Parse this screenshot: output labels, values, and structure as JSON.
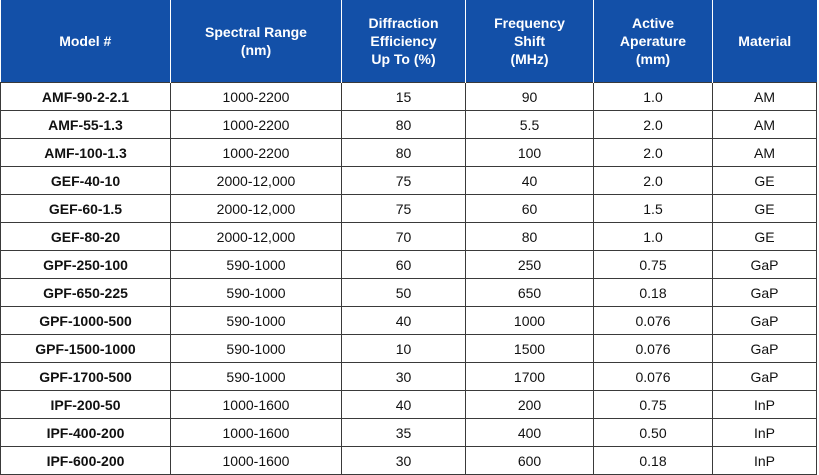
{
  "table": {
    "headers": [
      "Model #",
      "Spectral Range\n(nm)",
      "Diffraction\nEfficiency\nUp To (%)",
      "Frequency\nShift\n(MHz)",
      "Active\nAperature\n(mm)",
      "Material"
    ],
    "rows": [
      [
        "AMF-90-2-2.1",
        "1000-2200",
        "15",
        "90",
        "1.0",
        "AM"
      ],
      [
        "AMF-55-1.3",
        "1000-2200",
        "80",
        "5.5",
        "2.0",
        "AM"
      ],
      [
        "AMF-100-1.3",
        "1000-2200",
        "80",
        "100",
        "2.0",
        "AM"
      ],
      [
        "GEF-40-10",
        "2000-12,000",
        "75",
        "40",
        "2.0",
        "GE"
      ],
      [
        "GEF-60-1.5",
        "2000-12,000",
        "75",
        "60",
        "1.5",
        "GE"
      ],
      [
        "GEF-80-20",
        "2000-12,000",
        "70",
        "80",
        "1.0",
        "GE"
      ],
      [
        "GPF-250-100",
        "590-1000",
        "60",
        "250",
        "0.75",
        "GaP"
      ],
      [
        "GPF-650-225",
        "590-1000",
        "50",
        "650",
        "0.18",
        "GaP"
      ],
      [
        "GPF-1000-500",
        "590-1000",
        "40",
        "1000",
        "0.076",
        "GaP"
      ],
      [
        "GPF-1500-1000",
        "590-1000",
        "10",
        "1500",
        "0.076",
        "GaP"
      ],
      [
        "GPF-1700-500",
        "590-1000",
        "30",
        "1700",
        "0.076",
        "GaP"
      ],
      [
        "IPF-200-50",
        "1000-1600",
        "40",
        "200",
        "0.75",
        "InP"
      ],
      [
        "IPF-400-200",
        "1000-1600",
        "35",
        "400",
        "0.50",
        "InP"
      ],
      [
        "IPF-600-200",
        "1000-1600",
        "30",
        "600",
        "0.18",
        "InP"
      ]
    ]
  },
  "colors": {
    "header_background": "#1350a8",
    "header_text": "#ffffff",
    "grid_lines": "#3a3a3a"
  }
}
